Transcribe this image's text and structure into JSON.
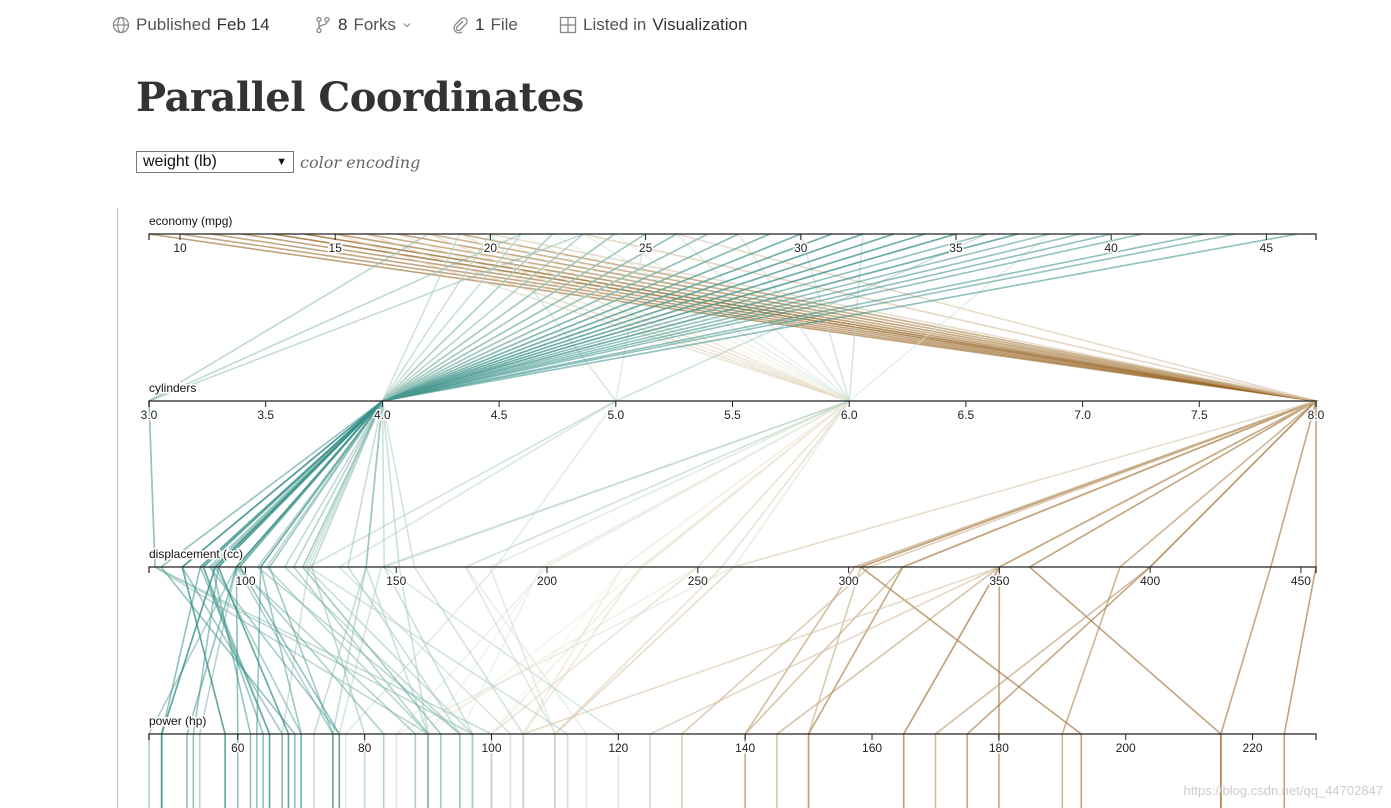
{
  "topbar": {
    "published": {
      "label": "Published",
      "date": "Feb 14"
    },
    "forks": {
      "count": "8",
      "label": "Forks"
    },
    "files": {
      "count": "1",
      "label": "File"
    },
    "listed": {
      "prefix": "Listed in",
      "collection": "Visualization"
    }
  },
  "page": {
    "title": "Parallel Coordinates"
  },
  "controls": {
    "color_select_value": "weight (lb)",
    "color_caption": "color encoding"
  },
  "watermark": "https://blog.csdn.net/qq_44702847",
  "colors": {
    "low": "#2a8a82",
    "mid": "#f4f1e4",
    "high": "#8c5109"
  },
  "chart_data": {
    "type": "parallel-coordinates",
    "color_by": "weight (lb)",
    "axes": [
      {
        "name": "economy (mpg)",
        "ticks": [
          "10",
          "15",
          "20",
          "25",
          "30",
          "35",
          "40",
          "45"
        ],
        "range": [
          9,
          46.6
        ]
      },
      {
        "name": "cylinders",
        "ticks": [
          "3.0",
          "3.5",
          "4.0",
          "4.5",
          "5.0",
          "5.5",
          "6.0",
          "6.5",
          "7.0",
          "7.5",
          "8.0"
        ],
        "range": [
          3,
          8
        ]
      },
      {
        "name": "displacement (cc)",
        "ticks": [
          "100",
          "150",
          "200",
          "250",
          "300",
          "350",
          "400",
          "450"
        ],
        "range": [
          68,
          455
        ]
      },
      {
        "name": "power (hp)",
        "ticks": [
          "60",
          "80",
          "100",
          "120",
          "140",
          "160",
          "180",
          "200",
          "220"
        ],
        "range": [
          46,
          230
        ]
      }
    ],
    "records": [
      {
        "mpg": 9,
        "cyl": 8,
        "disp": 304,
        "hp": 193,
        "w": 0.99
      },
      {
        "mpg": 10,
        "cyl": 8,
        "disp": 360,
        "hp": 215,
        "w": 0.97
      },
      {
        "mpg": 11,
        "cyl": 8,
        "disp": 350,
        "hp": 180,
        "w": 0.96
      },
      {
        "mpg": 12,
        "cyl": 8,
        "disp": 455,
        "hp": 225,
        "w": 0.98
      },
      {
        "mpg": 13,
        "cyl": 8,
        "disp": 400,
        "hp": 175,
        "w": 0.95
      },
      {
        "mpg": 13,
        "cyl": 8,
        "disp": 350,
        "hp": 165,
        "w": 0.9
      },
      {
        "mpg": 14,
        "cyl": 8,
        "disp": 318,
        "hp": 150,
        "w": 0.85
      },
      {
        "mpg": 14,
        "cyl": 8,
        "disp": 440,
        "hp": 215,
        "w": 0.94
      },
      {
        "mpg": 15,
        "cyl": 8,
        "disp": 390,
        "hp": 190,
        "w": 0.88
      },
      {
        "mpg": 15,
        "cyl": 8,
        "disp": 350,
        "hp": 145,
        "w": 0.8
      },
      {
        "mpg": 16,
        "cyl": 8,
        "disp": 318,
        "hp": 140,
        "w": 0.78
      },
      {
        "mpg": 16,
        "cyl": 8,
        "disp": 304,
        "hp": 150,
        "w": 0.75
      },
      {
        "mpg": 17,
        "cyl": 8,
        "disp": 302,
        "hp": 140,
        "w": 0.72
      },
      {
        "mpg": 17,
        "cyl": 8,
        "disp": 400,
        "hp": 170,
        "w": 0.83
      },
      {
        "mpg": 18,
        "cyl": 8,
        "disp": 318,
        "hp": 150,
        "w": 0.76
      },
      {
        "mpg": 18,
        "cyl": 8,
        "disp": 307,
        "hp": 130,
        "w": 0.74
      },
      {
        "mpg": 19,
        "cyl": 8,
        "disp": 302,
        "hp": 140,
        "w": 0.7
      },
      {
        "mpg": 19,
        "cyl": 8,
        "disp": 350,
        "hp": 165,
        "w": 0.79
      },
      {
        "mpg": 20,
        "cyl": 8,
        "disp": 262,
        "hp": 110,
        "w": 0.65
      },
      {
        "mpg": 23,
        "cyl": 8,
        "disp": 350,
        "hp": 125,
        "w": 0.68
      },
      {
        "mpg": 26,
        "cyl": 8,
        "disp": 350,
        "hp": 105,
        "w": 0.66
      },
      {
        "mpg": 15,
        "cyl": 6,
        "disp": 250,
        "hp": 100,
        "w": 0.6
      },
      {
        "mpg": 16,
        "cyl": 6,
        "disp": 258,
        "hp": 110,
        "w": 0.62
      },
      {
        "mpg": 17,
        "cyl": 6,
        "disp": 231,
        "hp": 105,
        "w": 0.58
      },
      {
        "mpg": 18,
        "cyl": 6,
        "disp": 232,
        "hp": 100,
        "w": 0.55
      },
      {
        "mpg": 18,
        "cyl": 6,
        "disp": 225,
        "hp": 105,
        "w": 0.56
      },
      {
        "mpg": 19,
        "cyl": 6,
        "disp": 232,
        "hp": 90,
        "w": 0.52
      },
      {
        "mpg": 19,
        "cyl": 6,
        "disp": 250,
        "hp": 88,
        "w": 0.54
      },
      {
        "mpg": 20,
        "cyl": 6,
        "disp": 225,
        "hp": 100,
        "w": 0.5
      },
      {
        "mpg": 21,
        "cyl": 6,
        "disp": 199,
        "hp": 90,
        "w": 0.48
      },
      {
        "mpg": 22,
        "cyl": 6,
        "disp": 198,
        "hp": 95,
        "w": 0.46
      },
      {
        "mpg": 23,
        "cyl": 6,
        "disp": 173,
        "hp": 115,
        "w": 0.42
      },
      {
        "mpg": 24,
        "cyl": 6,
        "disp": 200,
        "hp": 85,
        "w": 0.44
      },
      {
        "mpg": 26,
        "cyl": 6,
        "disp": 181,
        "hp": 110,
        "w": 0.4
      },
      {
        "mpg": 28,
        "cyl": 6,
        "disp": 173,
        "hp": 110,
        "w": 0.38
      },
      {
        "mpg": 30,
        "cyl": 6,
        "disp": 146,
        "hp": 120,
        "w": 0.36
      },
      {
        "mpg": 32,
        "cyl": 6,
        "disp": 145,
        "hp": 76,
        "w": 0.34
      },
      {
        "mpg": 38,
        "cyl": 6,
        "disp": 262,
        "hp": 85,
        "w": 0.42
      },
      {
        "mpg": 20,
        "cyl": 5,
        "disp": 131,
        "hp": 103,
        "w": 0.36
      },
      {
        "mpg": 25,
        "cyl": 5,
        "disp": 183,
        "hp": 77,
        "w": 0.4
      },
      {
        "mpg": 36,
        "cyl": 5,
        "disp": 121,
        "hp": 67,
        "w": 0.32
      },
      {
        "mpg": 18,
        "cyl": 3,
        "disp": 70,
        "hp": 90,
        "w": 0.22
      },
      {
        "mpg": 21,
        "cyl": 3,
        "disp": 70,
        "hp": 97,
        "w": 0.24
      },
      {
        "mpg": 23,
        "cyl": 3,
        "disp": 70,
        "hp": 100,
        "w": 0.26
      },
      {
        "mpg": 19,
        "cyl": 4,
        "disp": 121,
        "hp": 112,
        "w": 0.32
      },
      {
        "mpg": 20,
        "cyl": 4,
        "disp": 140,
        "hp": 90,
        "w": 0.3
      },
      {
        "mpg": 21,
        "cyl": 4,
        "disp": 120,
        "hp": 97,
        "w": 0.28
      },
      {
        "mpg": 22,
        "cyl": 4,
        "disp": 140,
        "hp": 72,
        "w": 0.27
      },
      {
        "mpg": 23,
        "cyl": 4,
        "disp": 97,
        "hp": 54,
        "w": 0.2
      },
      {
        "mpg": 24,
        "cyl": 4,
        "disp": 107,
        "hp": 90,
        "w": 0.22
      },
      {
        "mpg": 24,
        "cyl": 4,
        "disp": 113,
        "hp": 95,
        "w": 0.25
      },
      {
        "mpg": 25,
        "cyl": 4,
        "disp": 104,
        "hp": 95,
        "w": 0.21
      },
      {
        "mpg": 25,
        "cyl": 4,
        "disp": 140,
        "hp": 75,
        "w": 0.26
      },
      {
        "mpg": 26,
        "cyl": 4,
        "disp": 97,
        "hp": 46,
        "w": 0.15
      },
      {
        "mpg": 26,
        "cyl": 4,
        "disp": 122,
        "hp": 80,
        "w": 0.24
      },
      {
        "mpg": 27,
        "cyl": 4,
        "disp": 97,
        "hp": 88,
        "w": 0.18
      },
      {
        "mpg": 27,
        "cyl": 4,
        "disp": 151,
        "hp": 90,
        "w": 0.3
      },
      {
        "mpg": 28,
        "cyl": 4,
        "disp": 97,
        "hp": 75,
        "w": 0.17
      },
      {
        "mpg": 28,
        "cyl": 4,
        "disp": 116,
        "hp": 90,
        "w": 0.2
      },
      {
        "mpg": 29,
        "cyl": 4,
        "disp": 90,
        "hp": 70,
        "w": 0.14
      },
      {
        "mpg": 29,
        "cyl": 4,
        "disp": 98,
        "hp": 83,
        "w": 0.16
      },
      {
        "mpg": 30,
        "cyl": 4,
        "disp": 79,
        "hp": 67,
        "w": 0.1
      },
      {
        "mpg": 30,
        "cyl": 4,
        "disp": 88,
        "hp": 76,
        "w": 0.12
      },
      {
        "mpg": 31,
        "cyl": 4,
        "disp": 91,
        "hp": 68,
        "w": 0.09
      },
      {
        "mpg": 31,
        "cyl": 4,
        "disp": 79,
        "hp": 58,
        "w": 0.08
      },
      {
        "mpg": 32,
        "cyl": 4,
        "disp": 85,
        "hp": 65,
        "w": 0.07
      },
      {
        "mpg": 32,
        "cyl": 4,
        "disp": 86,
        "hp": 64,
        "w": 0.06
      },
      {
        "mpg": 33,
        "cyl": 4,
        "disp": 91,
        "hp": 53,
        "w": 0.06
      },
      {
        "mpg": 34,
        "cyl": 4,
        "disp": 89,
        "hp": 62,
        "w": 0.05
      },
      {
        "mpg": 34,
        "cyl": 4,
        "disp": 105,
        "hp": 70,
        "w": 0.09
      },
      {
        "mpg": 35,
        "cyl": 4,
        "disp": 97,
        "hp": 60,
        "w": 0.04
      },
      {
        "mpg": 36,
        "cyl": 4,
        "disp": 79,
        "hp": 58,
        "w": 0.03
      },
      {
        "mpg": 37,
        "cyl": 4,
        "disp": 91,
        "hp": 68,
        "w": 0.04
      },
      {
        "mpg": 38,
        "cyl": 4,
        "disp": 105,
        "hp": 63,
        "w": 0.06
      },
      {
        "mpg": 39,
        "cyl": 4,
        "disp": 86,
        "hp": 65,
        "w": 0.03
      },
      {
        "mpg": 40,
        "cyl": 4,
        "disp": 85,
        "hp": 48,
        "w": 0.02
      },
      {
        "mpg": 41,
        "cyl": 4,
        "disp": 98,
        "hp": 76,
        "w": 0.04
      },
      {
        "mpg": 43,
        "cyl": 4,
        "disp": 90,
        "hp": 48,
        "w": 0.03
      },
      {
        "mpg": 44,
        "cyl": 4,
        "disp": 97,
        "hp": 52,
        "w": 0.05
      },
      {
        "mpg": 46,
        "cyl": 4,
        "disp": 90,
        "hp": 48,
        "w": 0.02
      },
      {
        "mpg": 24,
        "cyl": 4,
        "disp": 156,
        "hp": 105,
        "w": 0.33
      },
      {
        "mpg": 22,
        "cyl": 4,
        "disp": 146,
        "hp": 97,
        "w": 0.3
      },
      {
        "mpg": 27,
        "cyl": 4,
        "disp": 134,
        "hp": 95,
        "w": 0.28
      },
      {
        "mpg": 33,
        "cyl": 4,
        "disp": 108,
        "hp": 75,
        "w": 0.1
      },
      {
        "mpg": 35,
        "cyl": 4,
        "disp": 72,
        "hp": 69,
        "w": 0.05
      },
      {
        "mpg": 37,
        "cyl": 4,
        "disp": 119,
        "hp": 92,
        "w": 0.12
      }
    ]
  }
}
